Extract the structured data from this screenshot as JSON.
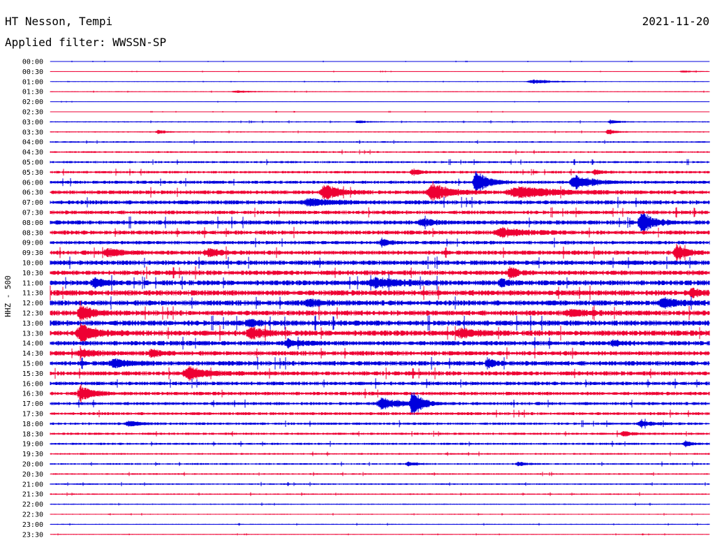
{
  "header": {
    "station": "HT Nesson, Tempi",
    "filter": "Applied filter: WWSSN-SP",
    "date": "2021-11-20"
  },
  "colors": {
    "even_hour": "#0000dd",
    "half_hour": "#ee0033"
  },
  "chart_data": {
    "type": "line",
    "title": "HT Nesson, Tempi",
    "subtitle": "Applied filter: WWSSN-SP",
    "date": "2021-11-20",
    "ylabel": "HHZ - 500",
    "xlabel": "",
    "grid": false,
    "legend": "none",
    "row_labels": [
      "00:00",
      "00:30",
      "01:00",
      "01:30",
      "02:00",
      "02:30",
      "03:00",
      "03:30",
      "04:00",
      "04:30",
      "05:00",
      "05:30",
      "06:00",
      "06:30",
      "07:00",
      "07:30",
      "08:00",
      "08:30",
      "09:00",
      "09:30",
      "10:00",
      "10:30",
      "11:00",
      "11:30",
      "12:00",
      "12:30",
      "13:00",
      "13:30",
      "14:00",
      "14:30",
      "15:00",
      "15:30",
      "16:00",
      "16:30",
      "17:00",
      "17:30",
      "18:00",
      "18:30",
      "19:00",
      "19:30",
      "20:00",
      "20:30",
      "21:00",
      "21:30",
      "22:00",
      "22:30",
      "23:00",
      "23:30"
    ],
    "row_minutes": 30,
    "noise": [
      0.3,
      0.3,
      0.3,
      0.4,
      0.3,
      0.3,
      0.6,
      0.6,
      0.8,
      0.9,
      1.1,
      1.3,
      1.6,
      2.0,
      2.1,
      1.9,
      2.2,
      2.1,
      1.8,
      2.2,
      2.4,
      2.4,
      2.6,
      2.8,
      2.7,
      2.6,
      2.8,
      2.8,
      2.4,
      2.3,
      2.4,
      2.2,
      1.9,
      1.8,
      1.6,
      1.5,
      1.3,
      1.2,
      1.1,
      0.9,
      0.9,
      0.8,
      0.8,
      0.7,
      0.6,
      0.5,
      0.5,
      0.4
    ],
    "events": [
      {
        "row": 1,
        "minute": 28.8,
        "amplitude": 1.5,
        "duration": 1.0
      },
      {
        "row": 2,
        "minute": 22.0,
        "amplitude": 3,
        "duration": 1.5
      },
      {
        "row": 3,
        "minute": 8.5,
        "amplitude": 1.5,
        "duration": 1.2
      },
      {
        "row": 6,
        "minute": 14.0,
        "amplitude": 2,
        "duration": 0.6
      },
      {
        "row": 6,
        "minute": 25.5,
        "amplitude": 3,
        "duration": 0.5
      },
      {
        "row": 7,
        "minute": 4.9,
        "amplitude": 3,
        "duration": 0.5
      },
      {
        "row": 7,
        "minute": 25.4,
        "amplitude": 4,
        "duration": 0.5
      },
      {
        "row": 11,
        "minute": 16.5,
        "amplitude": 4,
        "duration": 0.6
      },
      {
        "row": 11,
        "minute": 24.8,
        "amplitude": 3,
        "duration": 0.6
      },
      {
        "row": 12,
        "minute": 19.4,
        "amplitude": 16,
        "duration": 0.8
      },
      {
        "row": 12,
        "minute": 23.9,
        "amplitude": 10,
        "duration": 1.2
      },
      {
        "row": 13,
        "minute": 12.5,
        "amplitude": 11,
        "duration": 1.0
      },
      {
        "row": 13,
        "minute": 17.4,
        "amplitude": 12,
        "duration": 1.2
      },
      {
        "row": 13,
        "minute": 21.3,
        "amplitude": 8,
        "duration": 2.5
      },
      {
        "row": 14,
        "minute": 11.8,
        "amplitude": 5,
        "duration": 1.5
      },
      {
        "row": 16,
        "minute": 16.9,
        "amplitude": 5,
        "duration": 0.8
      },
      {
        "row": 16,
        "minute": 26.9,
        "amplitude": 15,
        "duration": 0.8
      },
      {
        "row": 17,
        "minute": 20.5,
        "amplitude": 6,
        "duration": 1.5
      },
      {
        "row": 18,
        "minute": 15.1,
        "amplitude": 5,
        "duration": 0.5
      },
      {
        "row": 19,
        "minute": 2.6,
        "amplitude": 5,
        "duration": 1.0
      },
      {
        "row": 19,
        "minute": 7.2,
        "amplitude": 5,
        "duration": 1.0
      },
      {
        "row": 19,
        "minute": 28.5,
        "amplitude": 12,
        "duration": 0.6
      },
      {
        "row": 21,
        "minute": 20.9,
        "amplitude": 9,
        "duration": 0.5
      },
      {
        "row": 22,
        "minute": 2.0,
        "amplitude": 6,
        "duration": 0.8
      },
      {
        "row": 22,
        "minute": 14.8,
        "amplitude": 6,
        "duration": 1.8
      },
      {
        "row": 22,
        "minute": 20.5,
        "amplitude": 5,
        "duration": 0.5
      },
      {
        "row": 23,
        "minute": 29.2,
        "amplitude": 6,
        "duration": 0.6
      },
      {
        "row": 24,
        "minute": 27.9,
        "amplitude": 6,
        "duration": 1.0
      },
      {
        "row": 24,
        "minute": 11.8,
        "amplitude": 4,
        "duration": 1.0
      },
      {
        "row": 25,
        "minute": 1.4,
        "amplitude": 10,
        "duration": 0.8
      },
      {
        "row": 25,
        "minute": 23.7,
        "amplitude": 4,
        "duration": 1.5
      },
      {
        "row": 26,
        "minute": 9.0,
        "amplitude": 4,
        "duration": 0.8
      },
      {
        "row": 27,
        "minute": 1.4,
        "amplitude": 12,
        "duration": 1.0
      },
      {
        "row": 27,
        "minute": 9.1,
        "amplitude": 9,
        "duration": 0.8
      },
      {
        "row": 27,
        "minute": 18.7,
        "amplitude": 6,
        "duration": 1.0
      },
      {
        "row": 28,
        "minute": 10.8,
        "amplitude": 5,
        "duration": 0.8
      },
      {
        "row": 28,
        "minute": 25.6,
        "amplitude": 4,
        "duration": 0.5
      },
      {
        "row": 29,
        "minute": 1.4,
        "amplitude": 5,
        "duration": 1.0
      },
      {
        "row": 29,
        "minute": 4.6,
        "amplitude": 6,
        "duration": 0.6
      },
      {
        "row": 30,
        "minute": 2.9,
        "amplitude": 6,
        "duration": 1.0
      },
      {
        "row": 30,
        "minute": 19.9,
        "amplitude": 7,
        "duration": 0.5
      },
      {
        "row": 31,
        "minute": 6.3,
        "amplitude": 9,
        "duration": 1.2
      },
      {
        "row": 33,
        "minute": 1.4,
        "amplitude": 11,
        "duration": 0.8
      },
      {
        "row": 34,
        "minute": 15.1,
        "amplitude": 8,
        "duration": 1.2
      },
      {
        "row": 34,
        "minute": 16.5,
        "amplitude": 20,
        "duration": 0.6
      },
      {
        "row": 36,
        "minute": 3.6,
        "amplitude": 4,
        "duration": 0.8
      },
      {
        "row": 36,
        "minute": 26.9,
        "amplitude": 4,
        "duration": 0.8
      },
      {
        "row": 37,
        "minute": 26.1,
        "amplitude": 4,
        "duration": 0.6
      },
      {
        "row": 38,
        "minute": 28.9,
        "amplitude": 4,
        "duration": 0.5
      },
      {
        "row": 40,
        "minute": 21.3,
        "amplitude": 3,
        "duration": 0.6
      },
      {
        "row": 40,
        "minute": 16.3,
        "amplitude": 3,
        "duration": 0.6
      }
    ]
  }
}
